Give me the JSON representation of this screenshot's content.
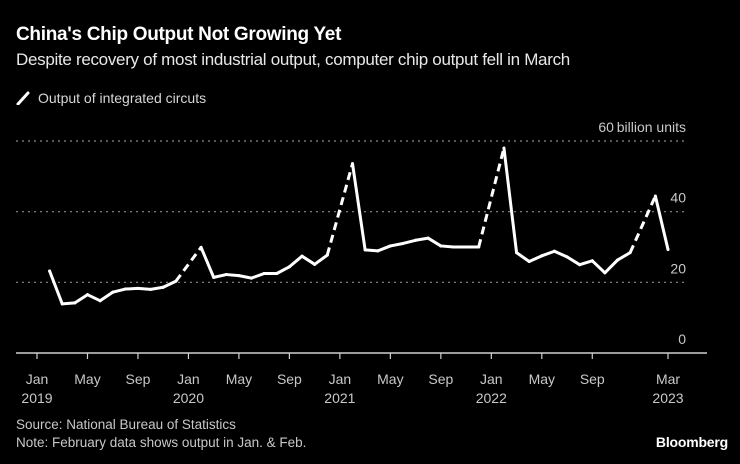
{
  "header": {
    "title": "China's Chip Output Not Growing Yet",
    "subtitle": "Despite recovery of most industrial output, computer chip output fell in March"
  },
  "legend": {
    "label": "Output of integrated circuts",
    "icon": "line-swatch-icon"
  },
  "footer": {
    "source": "Source: National Bureau of Statistics",
    "note": "Note: February data shows output in Jan. & Feb.",
    "brand": "Bloomberg"
  },
  "colors": {
    "background": "#000000",
    "line": "#ffffff",
    "grid": "#8a8a8a",
    "text": "#c8c8c8"
  },
  "chart_data": {
    "type": "line",
    "title": "China's Chip Output Not Growing Yet",
    "subtitle": "Despite recovery of most industrial output, computer chip output fell in March",
    "xlabel": "",
    "ylabel": "billion units",
    "ylim": [
      0,
      60
    ],
    "yticks": [
      {
        "value": 60,
        "label": "60"
      },
      {
        "value": 40,
        "label": "40"
      },
      {
        "value": 20,
        "label": "20"
      },
      {
        "value": 0,
        "label": "0"
      }
    ],
    "y_unit_label": "billion units",
    "grid": true,
    "legend_position": "top-left",
    "xlim": [
      "2019-01",
      "2023-04"
    ],
    "xticks": [
      {
        "date": "2019-01",
        "label": "Jan",
        "year": "2019"
      },
      {
        "date": "2019-05",
        "label": "May",
        "year": ""
      },
      {
        "date": "2019-09",
        "label": "Sep",
        "year": ""
      },
      {
        "date": "2020-01",
        "label": "Jan",
        "year": "2020"
      },
      {
        "date": "2020-05",
        "label": "May",
        "year": ""
      },
      {
        "date": "2020-09",
        "label": "Sep",
        "year": ""
      },
      {
        "date": "2021-01",
        "label": "Jan",
        "year": "2021"
      },
      {
        "date": "2021-05",
        "label": "May",
        "year": ""
      },
      {
        "date": "2021-09",
        "label": "Sep",
        "year": ""
      },
      {
        "date": "2022-01",
        "label": "Jan",
        "year": "2022"
      },
      {
        "date": "2022-05",
        "label": "May",
        "year": ""
      },
      {
        "date": "2022-09",
        "label": "Sep",
        "year": ""
      },
      {
        "date": "2023-03",
        "label": "Mar",
        "year": "2023"
      }
    ],
    "series": [
      {
        "name": "Output of integrated circuts",
        "note": "Dashed segments connect December to the combined Jan.–Feb. figure",
        "points": [
          {
            "date": "2019-02",
            "value": 23.2
          },
          {
            "date": "2019-03",
            "value": 13.9
          },
          {
            "date": "2019-04",
            "value": 14.2
          },
          {
            "date": "2019-05",
            "value": 16.5
          },
          {
            "date": "2019-06",
            "value": 14.8
          },
          {
            "date": "2019-07",
            "value": 17.2
          },
          {
            "date": "2019-08",
            "value": 18.1
          },
          {
            "date": "2019-09",
            "value": 18.3
          },
          {
            "date": "2019-10",
            "value": 18.0
          },
          {
            "date": "2019-11",
            "value": 18.6
          },
          {
            "date": "2019-12",
            "value": 20.3
          },
          {
            "date": "2020-02",
            "value": 29.9
          },
          {
            "date": "2020-03",
            "value": 21.4
          },
          {
            "date": "2020-04",
            "value": 22.2
          },
          {
            "date": "2020-05",
            "value": 21.9
          },
          {
            "date": "2020-06",
            "value": 21.2
          },
          {
            "date": "2020-07",
            "value": 22.5
          },
          {
            "date": "2020-08",
            "value": 22.5
          },
          {
            "date": "2020-09",
            "value": 24.4
          },
          {
            "date": "2020-10",
            "value": 27.4
          },
          {
            "date": "2020-11",
            "value": 25.1
          },
          {
            "date": "2020-12",
            "value": 27.7
          },
          {
            "date": "2021-02",
            "value": 53.6
          },
          {
            "date": "2021-03",
            "value": 29.2
          },
          {
            "date": "2021-04",
            "value": 28.9
          },
          {
            "date": "2021-05",
            "value": 30.3
          },
          {
            "date": "2021-06",
            "value": 31.0
          },
          {
            "date": "2021-07",
            "value": 31.9
          },
          {
            "date": "2021-08",
            "value": 32.5
          },
          {
            "date": "2021-09",
            "value": 30.3
          },
          {
            "date": "2021-10",
            "value": 30.0
          },
          {
            "date": "2021-11",
            "value": 30.0
          },
          {
            "date": "2021-12",
            "value": 30.0
          },
          {
            "date": "2022-02",
            "value": 58.0
          },
          {
            "date": "2022-03",
            "value": 28.4
          },
          {
            "date": "2022-04",
            "value": 25.9
          },
          {
            "date": "2022-05",
            "value": 27.5
          },
          {
            "date": "2022-06",
            "value": 28.8
          },
          {
            "date": "2022-07",
            "value": 27.2
          },
          {
            "date": "2022-08",
            "value": 25.0
          },
          {
            "date": "2022-09",
            "value": 26.1
          },
          {
            "date": "2022-10",
            "value": 22.7
          },
          {
            "date": "2022-11",
            "value": 26.3
          },
          {
            "date": "2022-12",
            "value": 28.4
          },
          {
            "date": "2023-02",
            "value": 44.4
          },
          {
            "date": "2023-03",
            "value": 29.3
          }
        ]
      }
    ]
  }
}
